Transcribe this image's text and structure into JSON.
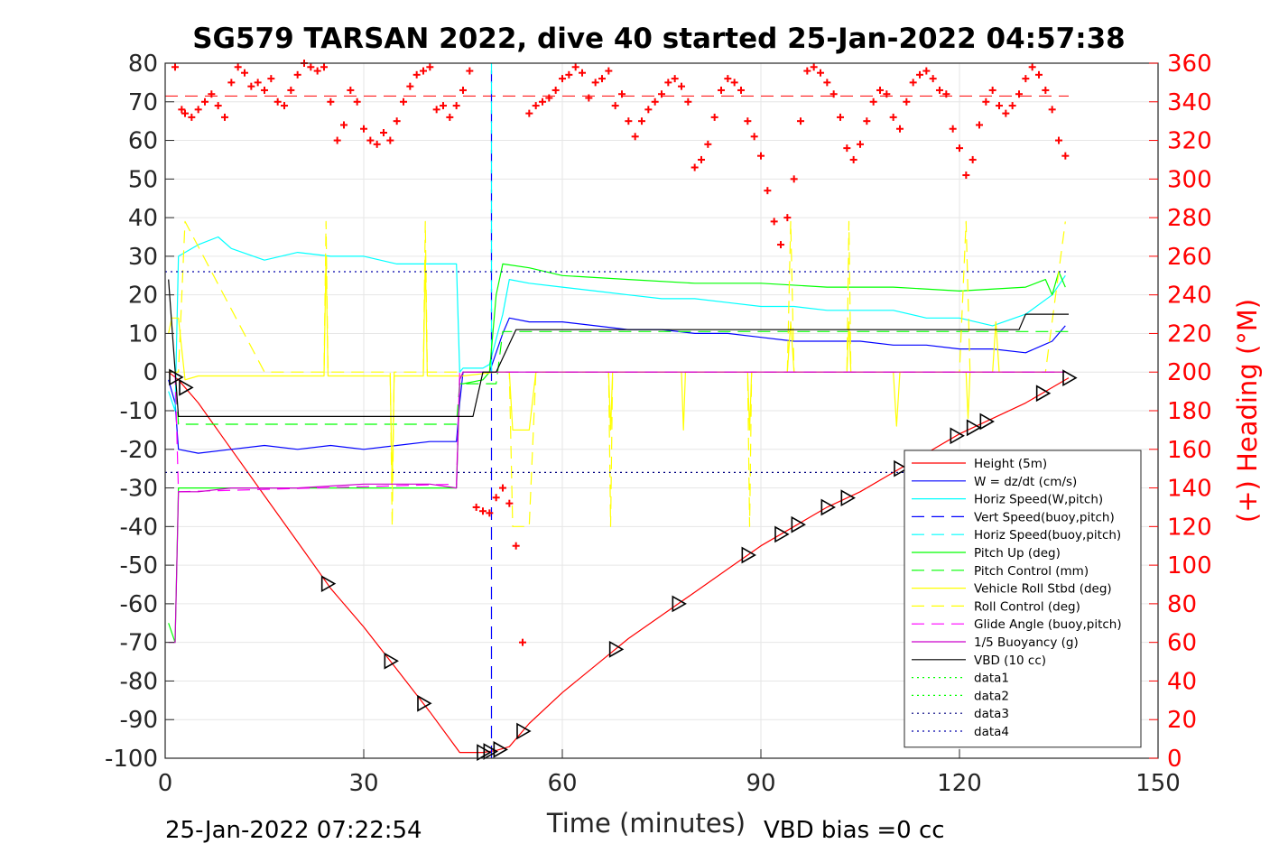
{
  "chart_data": {
    "type": "line",
    "title": "SG579 TARSAN 2022, dive 40 started 25-Jan-2022 04:57:38",
    "xlabel": "Time (minutes)",
    "ylabel": "",
    "ylabel_right": "(+) Heading (°M)",
    "xlim": [
      0,
      150
    ],
    "ylim": [
      -100,
      80
    ],
    "ylim_right": [
      0,
      360
    ],
    "xticks": [
      "0",
      "30",
      "60",
      "90",
      "120",
      "150"
    ],
    "yticks": [
      "80",
      "70",
      "60",
      "50",
      "40",
      "30",
      "20",
      "10",
      "0",
      "-10",
      "-20",
      "-30",
      "-40",
      "-50",
      "-60",
      "-70",
      "-80",
      "-90",
      "-100"
    ],
    "yticks_right": [
      "360",
      "340",
      "320",
      "300",
      "280",
      "260",
      "240",
      "220",
      "200",
      "180",
      "160",
      "140",
      "120",
      "100",
      "80",
      "60",
      "40",
      "20",
      "0"
    ],
    "grid": true,
    "legend_position": "lower-right",
    "footer_left": "25-Jan-2022 07:22:54",
    "footer_right": "VBD bias =0 cc",
    "series": [
      {
        "name": "Height (5m)",
        "color": "#ff0000",
        "style": "solid",
        "x": [
          0.5,
          2,
          5,
          10,
          15,
          20,
          25,
          30,
          35,
          40,
          44.5,
          46.5,
          48,
          50,
          52,
          55,
          60,
          65,
          70,
          75,
          80,
          85,
          90,
          95,
          100,
          105,
          110,
          115,
          120,
          125,
          130,
          133,
          136.5
        ],
        "y": [
          0,
          -2,
          -8,
          -20,
          -32,
          -44,
          -56,
          -66,
          -77,
          -88,
          -98.5,
          -98.5,
          -98.5,
          -98,
          -97,
          -91,
          -83,
          -76,
          -69,
          -63,
          -57,
          -51,
          -45,
          -40,
          -35,
          -31,
          -26,
          -21,
          -16,
          -12,
          -8,
          -5,
          -1.5
        ]
      },
      {
        "name": "W = dz/dt (cm/s)",
        "color": "#0000ff",
        "style": "solid",
        "x": [
          0.5,
          1.5,
          2,
          5,
          10,
          15,
          20,
          25,
          30,
          35,
          40,
          44,
          44.5,
          45,
          48,
          49,
          51,
          52,
          55,
          60,
          65,
          70,
          75,
          80,
          85,
          90,
          95,
          100,
          105,
          110,
          115,
          120,
          125,
          130,
          134,
          136
        ],
        "y": [
          -2,
          -8,
          -20,
          -21,
          -20,
          -19,
          -20,
          -19,
          -20,
          -19,
          -18,
          -18,
          -8,
          0,
          0,
          0,
          10,
          14,
          13,
          13,
          12,
          11,
          11,
          10,
          10,
          9,
          8,
          8,
          8,
          7,
          7,
          6,
          6,
          5,
          8,
          12
        ]
      },
      {
        "name": "Horiz Speed(W,pitch)",
        "color": "#00ffff",
        "style": "solid",
        "x": [
          0.5,
          1.5,
          2,
          5,
          8,
          10,
          15,
          20,
          25,
          30,
          35,
          40,
          44,
          44.5,
          45,
          48,
          49,
          51,
          52,
          55,
          60,
          65,
          70,
          75,
          80,
          85,
          90,
          95,
          100,
          105,
          110,
          115,
          120,
          125,
          130,
          134,
          136
        ],
        "y": [
          -5,
          -10,
          30,
          33,
          35,
          32,
          29,
          31,
          30,
          30,
          28,
          28,
          28,
          0,
          1,
          1,
          2,
          15,
          24,
          23,
          22,
          21,
          20,
          19,
          19,
          18,
          17,
          17,
          16,
          16,
          16,
          14,
          14,
          12,
          15,
          20,
          25
        ]
      },
      {
        "name": "Vert Speed(buoy,pitch)",
        "color": "#0000ff",
        "style": "dashed",
        "x": [
          49.3,
          49.3
        ],
        "y": [
          -100,
          80
        ]
      },
      {
        "name": "Horiz Speed(buoy,pitch)",
        "color": "#00ffff",
        "style": "dashed",
        "x": [
          49.3,
          49.3
        ],
        "y": [
          0,
          80
        ]
      },
      {
        "name": "Pitch Up (deg)",
        "color": "#00ff00",
        "style": "solid",
        "x": [
          0.5,
          1.5,
          2,
          5,
          10,
          20,
          30,
          40,
          44,
          44.5,
          45,
          48,
          49,
          50,
          51,
          55,
          60,
          70,
          80,
          90,
          100,
          110,
          120,
          130,
          133,
          134,
          135,
          136
        ],
        "y": [
          -65,
          -70,
          -30,
          -30,
          -30,
          -30,
          -30,
          -30,
          -30,
          -3,
          -3,
          -2,
          0,
          20,
          28,
          27,
          25,
          24,
          23,
          23,
          22,
          22,
          21,
          22,
          24,
          20,
          26,
          22
        ]
      },
      {
        "name": "Pitch Control (mm)",
        "color": "#00ff00",
        "style": "dashed",
        "x": [
          1.5,
          2,
          44,
          44.5,
          50,
          51,
          137
        ],
        "y": [
          0,
          -13.5,
          -13.5,
          -3,
          -3,
          10.5,
          10.5
        ]
      },
      {
        "name": "Vehicle Roll Stbd (deg)",
        "color": "#ffff00",
        "style": "solid",
        "x": [
          0.5,
          1,
          2,
          3,
          5,
          15,
          24,
          24.3,
          24.6,
          34,
          34.3,
          34.6,
          39,
          39.3,
          39.6,
          45,
          50,
          52,
          52.5,
          55,
          56,
          67,
          67.3,
          67.6,
          78,
          78.3,
          78.6,
          88,
          88.3,
          88.6,
          94,
          94.5,
          95,
          103,
          103.3,
          103.6,
          110,
          110.5,
          111,
          121,
          121.3,
          121.6,
          125,
          125.5,
          126,
          136
        ],
        "y": [
          10,
          14,
          14,
          -2,
          -1,
          -1,
          -1,
          30,
          -1,
          -1,
          -30,
          -1,
          -1,
          30,
          -1,
          -1,
          0,
          0,
          -15,
          -15,
          0,
          0,
          -15,
          0,
          0,
          -15,
          0,
          0,
          -15,
          0,
          0,
          13,
          0,
          0,
          13,
          0,
          0,
          -14,
          0,
          0,
          -12,
          0,
          0,
          13,
          0,
          0
        ]
      },
      {
        "name": "Roll Control (deg)",
        "color": "#ffff00",
        "style": "dashed",
        "x": [
          0.5,
          2,
          3,
          15,
          24,
          24.3,
          24.6,
          34,
          34.3,
          34.6,
          39,
          39.3,
          39.6,
          52,
          52.5,
          55,
          56,
          67,
          67.3,
          67.6,
          88,
          88.3,
          88.6,
          94,
          94.5,
          95,
          103,
          103.3,
          103.6,
          120,
          121,
          121.6,
          133,
          136
        ],
        "y": [
          0,
          0,
          39,
          0,
          0,
          39,
          0,
          0,
          -40,
          0,
          0,
          39,
          0,
          0,
          -40,
          -40,
          0,
          0,
          -40,
          0,
          0,
          -40,
          0,
          0,
          39,
          0,
          0,
          39,
          0,
          0,
          39,
          0,
          0,
          39
        ]
      },
      {
        "name": "Glide Angle (buoy,pitch)",
        "color": "#ff00ff",
        "style": "dashed",
        "x": [
          1.5,
          2,
          44,
          44.5,
          50,
          136
        ],
        "y": [
          0,
          -31,
          -29,
          0,
          0,
          0
        ]
      },
      {
        "name": "1/5 Buoyancy (g)",
        "color": "#cc00cc",
        "style": "solid",
        "x": [
          0.5,
          1.5,
          2,
          5,
          10,
          20,
          30,
          40,
          44,
          44.5,
          45,
          50,
          136
        ],
        "y": [
          -70,
          -70,
          -31,
          -31,
          -30,
          -30,
          -29,
          -29,
          -30,
          -2,
          0,
          0,
          0
        ]
      },
      {
        "name": "VBD (10 cc)",
        "color": "#000000",
        "style": "solid",
        "x": [
          0.5,
          2,
          44,
          46.5,
          48,
          50,
          53,
          129,
          130,
          136.5
        ],
        "y": [
          24,
          -11.5,
          -11.5,
          -11.5,
          0,
          0,
          11,
          11,
          15,
          15
        ]
      },
      {
        "name": "data1",
        "color": "#00ff00",
        "style": "dotted",
        "x": [],
        "y": []
      },
      {
        "name": "data2",
        "color": "#00ff00",
        "style": "dotted",
        "x": [],
        "y": []
      },
      {
        "name": "data3",
        "color": "#000080",
        "style": "dotted",
        "x": [
          0,
          136.5
        ],
        "y": [
          -26,
          -26
        ]
      },
      {
        "name": "data4",
        "color": "#0000aa",
        "style": "dotted",
        "x": [
          0,
          136.5
        ],
        "y": [
          26,
          26
        ]
      }
    ],
    "reference_line": {
      "color": "#ff0000",
      "style": "dashed",
      "heading": 343,
      "x": [
        0,
        136.5
      ]
    },
    "heading_points": {
      "color": "#ff0000",
      "marker": "+",
      "x": [
        1.5,
        2.5,
        3,
        4,
        5,
        6,
        7,
        8,
        9,
        10,
        11,
        12,
        13,
        14,
        15,
        16,
        17,
        18,
        19,
        20,
        21,
        22,
        23,
        24,
        25,
        26,
        27,
        28,
        29,
        30,
        31,
        32,
        33,
        34,
        35,
        36,
        37,
        38,
        39,
        40,
        41,
        42,
        43,
        44,
        45,
        46,
        47,
        48,
        49,
        50,
        51,
        52,
        53,
        54,
        55,
        56,
        57,
        58,
        59,
        60,
        61,
        62,
        63,
        64,
        65,
        66,
        67,
        68,
        69,
        70,
        71,
        72,
        73,
        74,
        75,
        76,
        77,
        78,
        79,
        80,
        81,
        82,
        83,
        84,
        85,
        86,
        87,
        88,
        89,
        90,
        91,
        92,
        93,
        94,
        95,
        96,
        97,
        98,
        99,
        100,
        101,
        102,
        103,
        104,
        105,
        106,
        107,
        108,
        109,
        110,
        111,
        112,
        113,
        114,
        115,
        116,
        117,
        118,
        119,
        120,
        121,
        122,
        123,
        124,
        125,
        126,
        127,
        128,
        129,
        130,
        131,
        132,
        133,
        134,
        135,
        136
      ],
      "y": [
        358,
        336,
        334,
        332,
        336,
        340,
        344,
        338,
        332,
        350,
        358,
        355,
        348,
        350,
        346,
        352,
        340,
        338,
        346,
        354,
        360,
        358,
        356,
        358,
        340,
        320,
        328,
        346,
        340,
        326,
        320,
        318,
        324,
        320,
        330,
        340,
        348,
        354,
        356,
        358,
        336,
        338,
        332,
        338,
        346,
        356,
        130,
        128,
        127,
        135,
        140,
        132,
        110,
        60,
        334,
        338,
        340,
        342,
        346,
        352,
        354,
        358,
        355,
        342,
        350,
        352,
        356,
        338,
        344,
        330,
        322,
        330,
        336,
        340,
        344,
        350,
        352,
        348,
        340,
        306,
        310,
        318,
        332,
        346,
        352,
        350,
        346,
        330,
        322,
        312,
        294,
        278,
        266,
        280,
        300,
        330,
        356,
        358,
        355,
        350,
        344,
        332,
        316,
        310,
        318,
        330,
        340,
        346,
        344,
        332,
        326,
        340,
        350,
        354,
        356,
        352,
        346,
        344,
        326,
        316,
        302,
        310,
        328,
        340,
        346,
        338,
        334,
        338,
        344,
        352,
        358,
        354,
        346,
        336,
        320,
        312
      ]
    }
  }
}
